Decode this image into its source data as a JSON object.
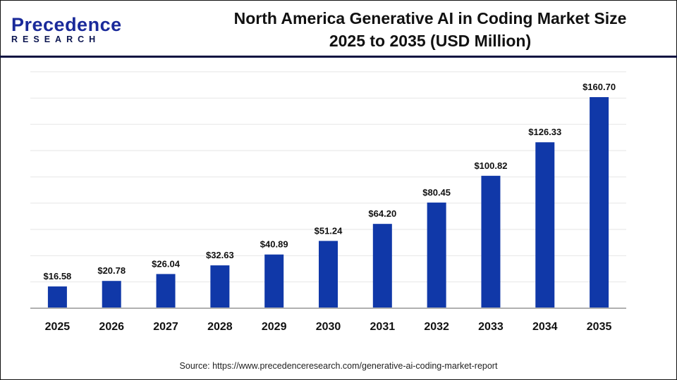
{
  "logo": {
    "line1": "Precedence",
    "line2": "RESEARCH"
  },
  "title_line1": "North America Generative AI in Coding Market Size",
  "title_line2": "2025 to 2035 (USD Million)",
  "source": "Source: https://www.precedenceresearch.com/generative-ai-coding-market-report",
  "chart_data": {
    "type": "bar",
    "title": "North America Generative AI in Coding Market Size 2025 to 2035 (USD Million)",
    "categories": [
      "2025",
      "2026",
      "2027",
      "2028",
      "2029",
      "2030",
      "2031",
      "2032",
      "2033",
      "2034",
      "2035"
    ],
    "values": [
      16.58,
      20.78,
      26.04,
      32.63,
      40.89,
      51.24,
      64.2,
      80.45,
      100.82,
      126.33,
      160.7
    ],
    "data_labels": [
      "$16.58",
      "$20.78",
      "$26.04",
      "$32.63",
      "$40.89",
      "$51.24",
      "$64.20",
      "$80.45",
      "$100.82",
      "$126.33",
      "$160.70"
    ],
    "ylim": [
      0,
      180
    ],
    "grid": true,
    "bar_color": "#1038a8",
    "xlabel": "",
    "ylabel": ""
  }
}
